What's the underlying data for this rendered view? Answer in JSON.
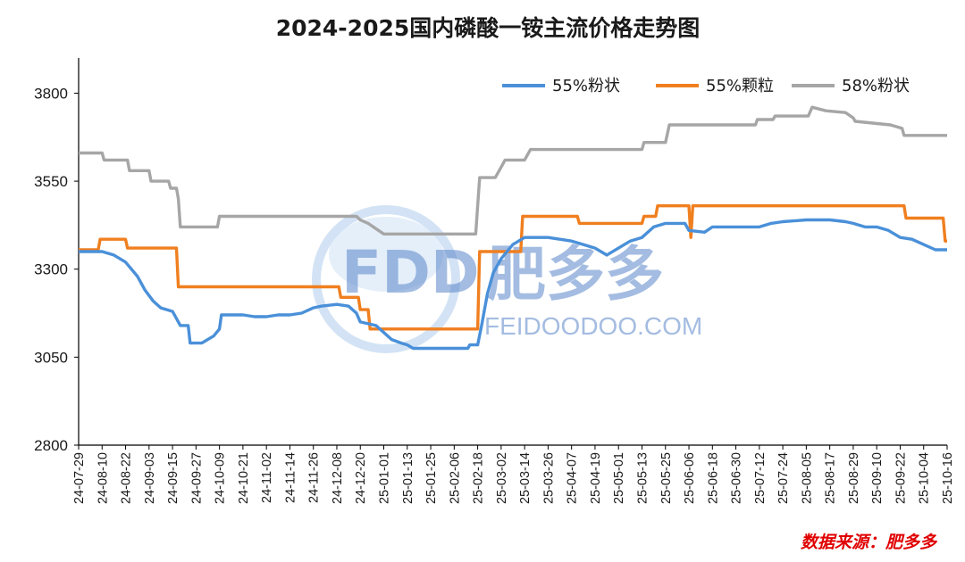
{
  "chart_data": {
    "type": "line",
    "title": "2024-2025国内磷酸一铵主流价格走势图",
    "ylim": [
      2800,
      3900
    ],
    "yticks": [
      2800,
      3050,
      3300,
      3550,
      3800
    ],
    "xlim": [
      "2024-07-29",
      "2025-10-16"
    ],
    "xticks": [
      "24-07-29",
      "24-08-10",
      "24-08-22",
      "24-09-03",
      "24-09-15",
      "24-09-27",
      "24-10-09",
      "24-10-21",
      "24-11-02",
      "24-11-14",
      "24-11-26",
      "24-12-08",
      "24-12-20",
      "25-01-01",
      "25-01-13",
      "25-01-25",
      "25-02-06",
      "25-02-18",
      "25-03-02",
      "25-03-14",
      "25-03-26",
      "25-04-07",
      "25-04-19",
      "25-05-01",
      "25-05-13",
      "25-05-25",
      "25-06-06",
      "25-06-18",
      "25-06-30",
      "25-07-12",
      "25-07-24",
      "25-08-05",
      "25-08-17",
      "25-08-29",
      "25-09-10",
      "25-09-22",
      "25-10-04",
      "25-10-16"
    ],
    "legend_position": "top-right",
    "grid": false,
    "series": [
      {
        "name": "55%粉状",
        "color": "#4a90d9",
        "points": [
          [
            "2024-07-29",
            3350
          ],
          [
            "2024-08-10",
            3350
          ],
          [
            "2024-08-16",
            3340
          ],
          [
            "2024-08-22",
            3320
          ],
          [
            "2024-08-28",
            3280
          ],
          [
            "2024-09-01",
            3240
          ],
          [
            "2024-09-05",
            3210
          ],
          [
            "2024-09-09",
            3190
          ],
          [
            "2024-09-15",
            3180
          ],
          [
            "2024-09-19",
            3140
          ],
          [
            "2024-09-23",
            3140
          ],
          [
            "2024-09-24",
            3090
          ],
          [
            "2024-09-30",
            3090
          ],
          [
            "2024-10-03",
            3100
          ],
          [
            "2024-10-06",
            3110
          ],
          [
            "2024-10-09",
            3130
          ],
          [
            "2024-10-10",
            3170
          ],
          [
            "2024-10-14",
            3170
          ],
          [
            "2024-10-21",
            3170
          ],
          [
            "2024-10-27",
            3165
          ],
          [
            "2024-11-02",
            3165
          ],
          [
            "2024-11-08",
            3170
          ],
          [
            "2024-11-14",
            3170
          ],
          [
            "2024-11-20",
            3175
          ],
          [
            "2024-11-26",
            3190
          ],
          [
            "2024-11-30",
            3195
          ],
          [
            "2024-12-08",
            3200
          ],
          [
            "2024-12-14",
            3195
          ],
          [
            "2024-12-18",
            3175
          ],
          [
            "2024-12-20",
            3150
          ],
          [
            "2024-12-28",
            3140
          ],
          [
            "2025-01-01",
            3120
          ],
          [
            "2025-01-05",
            3100
          ],
          [
            "2025-01-10",
            3090
          ],
          [
            "2025-01-13",
            3085
          ],
          [
            "2025-01-16",
            3075
          ],
          [
            "2025-02-13",
            3075
          ],
          [
            "2025-02-14",
            3085
          ],
          [
            "2025-02-18",
            3085
          ],
          [
            "2025-02-20",
            3140
          ],
          [
            "2025-02-23",
            3230
          ],
          [
            "2025-02-26",
            3290
          ],
          [
            "2025-03-02",
            3330
          ],
          [
            "2025-03-08",
            3370
          ],
          [
            "2025-03-14",
            3390
          ],
          [
            "2025-03-26",
            3390
          ],
          [
            "2025-04-01",
            3385
          ],
          [
            "2025-04-07",
            3380
          ],
          [
            "2025-04-13",
            3370
          ],
          [
            "2025-04-19",
            3360
          ],
          [
            "2025-04-25",
            3340
          ],
          [
            "2025-05-01",
            3360
          ],
          [
            "2025-05-07",
            3380
          ],
          [
            "2025-05-13",
            3390
          ],
          [
            "2025-05-19",
            3420
          ],
          [
            "2025-05-25",
            3430
          ],
          [
            "2025-06-04",
            3430
          ],
          [
            "2025-06-06",
            3410
          ],
          [
            "2025-06-14",
            3405
          ],
          [
            "2025-06-18",
            3420
          ],
          [
            "2025-06-30",
            3420
          ],
          [
            "2025-07-12",
            3420
          ],
          [
            "2025-07-18",
            3430
          ],
          [
            "2025-07-24",
            3435
          ],
          [
            "2025-08-05",
            3440
          ],
          [
            "2025-08-17",
            3440
          ],
          [
            "2025-08-25",
            3435
          ],
          [
            "2025-08-29",
            3430
          ],
          [
            "2025-09-04",
            3420
          ],
          [
            "2025-09-10",
            3420
          ],
          [
            "2025-09-16",
            3410
          ],
          [
            "2025-09-22",
            3390
          ],
          [
            "2025-09-28",
            3385
          ],
          [
            "2025-10-04",
            3370
          ],
          [
            "2025-10-10",
            3355
          ],
          [
            "2025-10-16",
            3355
          ]
        ]
      },
      {
        "name": "55%颗粒",
        "color": "#f07f1f",
        "points": [
          [
            "2024-07-29",
            3355
          ],
          [
            "2024-08-08",
            3355
          ],
          [
            "2024-08-09",
            3385
          ],
          [
            "2024-08-22",
            3385
          ],
          [
            "2024-08-23",
            3360
          ],
          [
            "2024-09-17",
            3360
          ],
          [
            "2024-09-18",
            3250
          ],
          [
            "2024-12-09",
            3250
          ],
          [
            "2024-12-10",
            3220
          ],
          [
            "2024-12-19",
            3220
          ],
          [
            "2024-12-20",
            3185
          ],
          [
            "2024-12-24",
            3185
          ],
          [
            "2024-12-25",
            3130
          ],
          [
            "2025-02-18",
            3130
          ],
          [
            "2025-02-19",
            3350
          ],
          [
            "2025-03-12",
            3350
          ],
          [
            "2025-03-13",
            3450
          ],
          [
            "2025-04-10",
            3450
          ],
          [
            "2025-04-11",
            3430
          ],
          [
            "2025-05-13",
            3430
          ],
          [
            "2025-05-14",
            3450
          ],
          [
            "2025-05-20",
            3450
          ],
          [
            "2025-05-21",
            3480
          ],
          [
            "2025-06-06",
            3480
          ],
          [
            "2025-06-07",
            3390
          ],
          [
            "2025-06-08",
            3480
          ],
          [
            "2025-09-24",
            3480
          ],
          [
            "2025-09-25",
            3445
          ],
          [
            "2025-10-14",
            3445
          ],
          [
            "2025-10-15",
            3380
          ],
          [
            "2025-10-16",
            3380
          ]
        ]
      },
      {
        "name": "58%粉状",
        "color": "#a6a6a6",
        "points": [
          [
            "2024-07-29",
            3630
          ],
          [
            "2024-08-10",
            3630
          ],
          [
            "2024-08-11",
            3610
          ],
          [
            "2024-08-23",
            3610
          ],
          [
            "2024-08-24",
            3580
          ],
          [
            "2024-09-03",
            3580
          ],
          [
            "2024-09-04",
            3550
          ],
          [
            "2024-09-13",
            3550
          ],
          [
            "2024-09-14",
            3530
          ],
          [
            "2024-09-17",
            3530
          ],
          [
            "2024-09-18",
            3500
          ],
          [
            "2024-09-19",
            3420
          ],
          [
            "2024-10-08",
            3420
          ],
          [
            "2024-10-09",
            3450
          ],
          [
            "2024-12-18",
            3450
          ],
          [
            "2024-12-20",
            3440
          ],
          [
            "2024-12-24",
            3430
          ],
          [
            "2025-01-01",
            3400
          ],
          [
            "2025-02-17",
            3400
          ],
          [
            "2025-02-19",
            3560
          ],
          [
            "2025-02-27",
            3560
          ],
          [
            "2025-03-02",
            3590
          ],
          [
            "2025-03-04",
            3610
          ],
          [
            "2025-03-14",
            3610
          ],
          [
            "2025-03-17",
            3640
          ],
          [
            "2025-05-13",
            3640
          ],
          [
            "2025-05-14",
            3660
          ],
          [
            "2025-05-25",
            3660
          ],
          [
            "2025-05-27",
            3710
          ],
          [
            "2025-07-10",
            3710
          ],
          [
            "2025-07-11",
            3725
          ],
          [
            "2025-07-19",
            3725
          ],
          [
            "2025-07-20",
            3735
          ],
          [
            "2025-08-06",
            3735
          ],
          [
            "2025-08-08",
            3760
          ],
          [
            "2025-08-15",
            3750
          ],
          [
            "2025-08-25",
            3745
          ],
          [
            "2025-08-29",
            3730
          ],
          [
            "2025-08-30",
            3720
          ],
          [
            "2025-09-17",
            3710
          ],
          [
            "2025-09-23",
            3700
          ],
          [
            "2025-09-24",
            3680
          ],
          [
            "2025-10-16",
            3680
          ]
        ]
      }
    ],
    "annotation": "数据来源：肥多多"
  },
  "watermark": {
    "logo_text": "FDD",
    "brand_cn": "肥多多",
    "brand_en": "FEIDOODOO.COM"
  }
}
